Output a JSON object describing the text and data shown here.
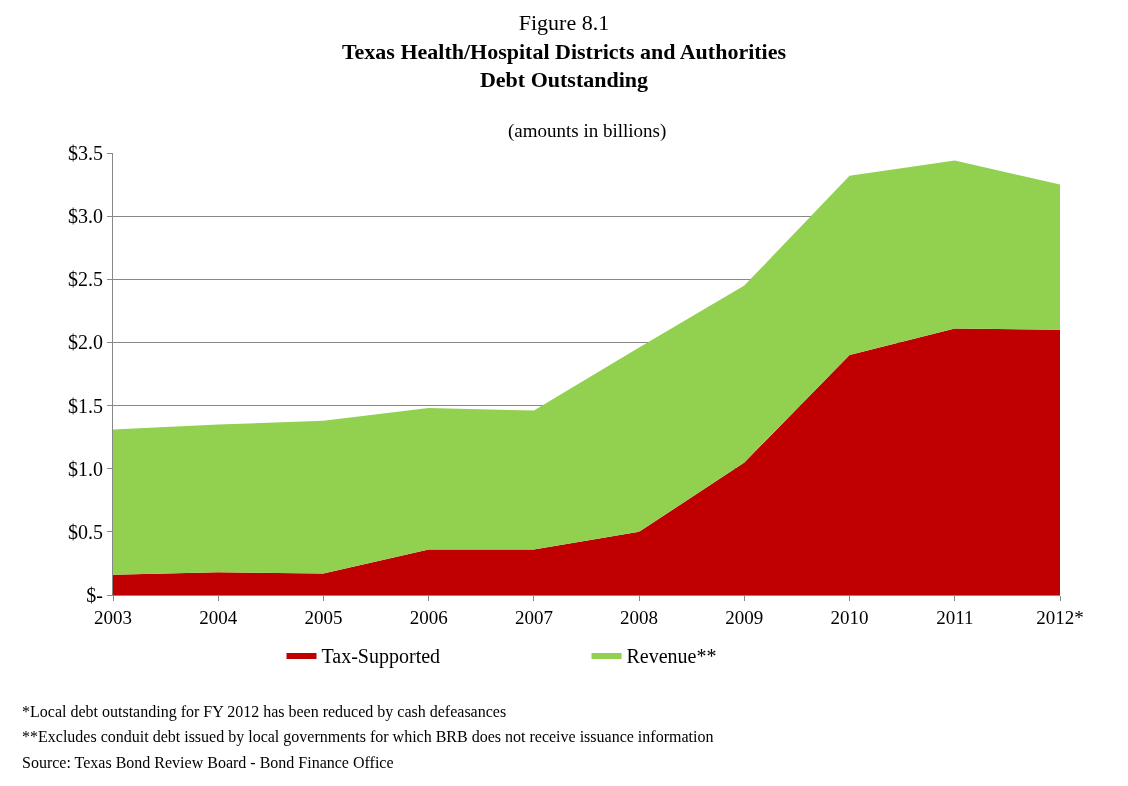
{
  "chart_data": {
    "type": "area",
    "title": "Figure 8.1\nTexas Health/Hospital Districts and Authorities\nDebt Outstanding",
    "subtitle": "(amounts in billions)",
    "categories": [
      "2003",
      "2004",
      "2005",
      "2006",
      "2007",
      "2008",
      "2009",
      "2010",
      "2011",
      "2012*"
    ],
    "stacked": true,
    "series": [
      {
        "name": "Tax-Supported",
        "color": "#c00000",
        "values": [
          0.16,
          0.18,
          0.17,
          0.36,
          0.36,
          0.5,
          1.05,
          1.9,
          2.11,
          2.1
        ]
      },
      {
        "name": "Revenue**",
        "color": "#92d050",
        "values": [
          1.15,
          1.17,
          1.21,
          1.12,
          1.1,
          1.46,
          1.4,
          1.42,
          1.33,
          1.15
        ]
      }
    ],
    "ylim": [
      0,
      3.5
    ],
    "yticks": [
      {
        "value": 0,
        "label": "$-"
      },
      {
        "value": 0.5,
        "label": "$0.5"
      },
      {
        "value": 1.0,
        "label": "$1.0"
      },
      {
        "value": 1.5,
        "label": "$1.5"
      },
      {
        "value": 2.0,
        "label": "$2.0"
      },
      {
        "value": 2.5,
        "label": "$2.5"
      },
      {
        "value": 3.0,
        "label": "$3.0"
      },
      {
        "value": 3.5,
        "label": "$3.5"
      }
    ],
    "grid": "y",
    "legend": "bottom",
    "annotations": [
      "*Local debt outstanding for FY 2012 has been reduced by cash defeasances",
      "**Excludes conduit debt issued by local governments for which BRB does not receive issuance information",
      "Source: Texas Bond Review Board - Bond Finance Office"
    ]
  }
}
